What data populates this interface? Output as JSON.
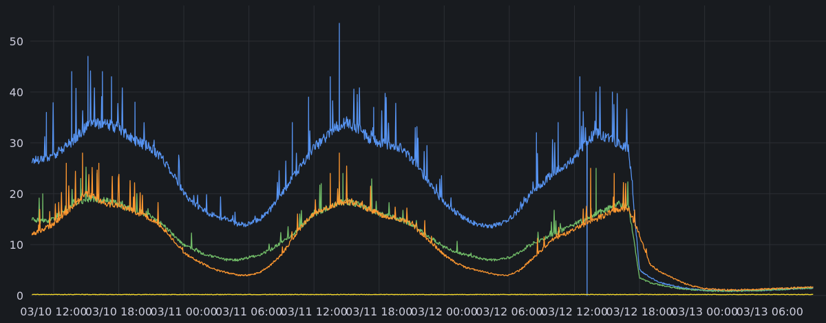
{
  "chart_data": {
    "type": "line",
    "x_ticks": [
      "03/10 12:00",
      "03/10 18:00",
      "03/11 00:00",
      "03/11 06:00",
      "03/11 12:00",
      "03/11 18:00",
      "03/12 00:00",
      "03/12 06:00",
      "03/12 12:00",
      "03/12 18:00",
      "03/13 00:00",
      "03/13 06:00"
    ],
    "y_ticks": [
      0,
      10,
      20,
      30,
      40,
      50
    ],
    "ylim": [
      0,
      57
    ],
    "grid": true,
    "series": [
      {
        "color": "#5794f2",
        "x": [
          "03/10 10:00",
          "03/10 11:00",
          "03/10 12:00",
          "03/10 13:00",
          "03/10 14:00",
          "03/10 15:00",
          "03/10 16:00",
          "03/10 17:00",
          "03/10 18:00",
          "03/10 19:00",
          "03/10 20:00",
          "03/10 21:00",
          "03/10 22:00",
          "03/10 23:00",
          "03/11 00:00",
          "03/11 01:00",
          "03/11 02:00",
          "03/11 03:00",
          "03/11 04:00",
          "03/11 05:00",
          "03/11 06:00",
          "03/11 07:00",
          "03/11 08:00",
          "03/11 09:00",
          "03/11 10:00",
          "03/11 11:00",
          "03/11 12:00",
          "03/11 13:00",
          "03/11 14:00",
          "03/11 15:00",
          "03/11 16:00",
          "03/11 17:00",
          "03/11 18:00",
          "03/11 19:00",
          "03/11 20:00",
          "03/11 21:00",
          "03/11 22:00",
          "03/11 23:00",
          "03/12 00:00",
          "03/12 01:00",
          "03/12 02:00",
          "03/12 03:00",
          "03/12 04:00",
          "03/12 05:00",
          "03/12 06:00",
          "03/12 07:00",
          "03/12 08:00",
          "03/12 09:00",
          "03/12 10:00",
          "03/12 11:00",
          "03/12 12:00",
          "03/12 13:00",
          "03/12 14:00",
          "03/12 15:00",
          "03/12 16:00",
          "03/12 17:00",
          "03/12 18:00",
          "03/12 19:00",
          "03/12 20:00",
          "03/12 21:00",
          "03/12 22:00",
          "03/12 23:00",
          "03/13 00:00",
          "03/13 01:00",
          "03/13 02:00",
          "03/13 03:00",
          "03/13 04:00",
          "03/13 05:00",
          "03/13 06:00",
          "03/13 07:00",
          "03/13 08:00",
          "03/13 09:00",
          "03/13 10:00"
        ],
        "values": [
          26.5,
          27,
          27.5,
          29,
          31,
          33,
          34,
          33.5,
          33,
          31,
          30,
          29,
          27,
          24,
          20,
          18,
          16.5,
          15.5,
          15,
          14,
          14,
          15,
          17,
          20,
          23,
          26,
          29,
          31,
          33,
          34,
          33,
          31,
          30,
          29.5,
          29,
          27,
          24,
          21,
          18,
          16.5,
          15,
          14,
          13.5,
          14,
          15,
          17,
          20,
          22,
          24,
          25,
          27,
          30,
          32,
          31,
          30,
          29,
          5,
          3.5,
          2.5,
          2,
          1.5,
          1.2,
          1,
          1,
          0.9,
          1,
          1,
          1,
          1.1,
          1.2,
          1.3,
          1.4,
          1.5
        ],
        "spikes": [
          [
            "03/10 11:20",
            36
          ],
          [
            "03/10 13:40",
            44
          ],
          [
            "03/10 15:10",
            47
          ],
          [
            "03/10 16:30",
            44
          ],
          [
            "03/10 17:20",
            43
          ],
          [
            "03/10 19:30",
            38
          ],
          [
            "03/11 10:00",
            34
          ],
          [
            "03/11 11:30",
            39
          ],
          [
            "03/11 13:30",
            43
          ],
          [
            "03/11 14:20",
            53.5
          ],
          [
            "03/11 16:00",
            38
          ],
          [
            "03/11 17:30",
            37
          ],
          [
            "03/12 08:30",
            32
          ],
          [
            "03/12 10:30",
            34
          ],
          [
            "03/12 12:30",
            43
          ],
          [
            "03/12 14:00",
            40
          ],
          [
            "03/12 15:30",
            40
          ],
          [
            "03/12 13:10",
            0
          ]
        ]
      },
      {
        "color": "#73bf69",
        "x": [
          "03/10 10:00",
          "03/10 11:00",
          "03/10 12:00",
          "03/10 13:00",
          "03/10 14:00",
          "03/10 15:00",
          "03/10 16:00",
          "03/10 17:00",
          "03/10 18:00",
          "03/10 19:00",
          "03/10 20:00",
          "03/10 21:00",
          "03/10 22:00",
          "03/10 23:00",
          "03/11 00:00",
          "03/11 01:00",
          "03/11 02:00",
          "03/11 03:00",
          "03/11 04:00",
          "03/11 05:00",
          "03/11 06:00",
          "03/11 07:00",
          "03/11 08:00",
          "03/11 09:00",
          "03/11 10:00",
          "03/11 11:00",
          "03/11 12:00",
          "03/11 13:00",
          "03/11 14:00",
          "03/11 15:00",
          "03/11 16:00",
          "03/11 17:00",
          "03/11 18:00",
          "03/11 19:00",
          "03/11 20:00",
          "03/11 21:00",
          "03/11 22:00",
          "03/11 23:00",
          "03/12 00:00",
          "03/12 01:00",
          "03/12 02:00",
          "03/12 03:00",
          "03/12 04:00",
          "03/12 05:00",
          "03/12 06:00",
          "03/12 07:00",
          "03/12 08:00",
          "03/12 09:00",
          "03/12 10:00",
          "03/12 11:00",
          "03/12 12:00",
          "03/12 13:00",
          "03/12 14:00",
          "03/12 15:00",
          "03/12 16:00",
          "03/12 17:00",
          "03/12 18:00",
          "03/12 19:00",
          "03/12 20:00",
          "03/12 21:00",
          "03/12 22:00",
          "03/12 23:00",
          "03/13 00:00",
          "03/13 01:00",
          "03/13 02:00",
          "03/13 03:00",
          "03/13 04:00",
          "03/13 05:00",
          "03/13 06:00",
          "03/13 07:00",
          "03/13 08:00",
          "03/13 09:00",
          "03/13 10:00"
        ],
        "values": [
          15,
          14.5,
          15,
          17,
          18,
          19,
          19,
          18.5,
          18,
          17,
          16.5,
          15.5,
          14,
          12,
          10,
          9,
          8,
          7.5,
          7,
          7,
          7.5,
          8,
          9,
          10.5,
          12,
          14,
          16,
          17,
          18,
          18.5,
          18,
          17,
          16,
          15.5,
          15,
          14,
          12.5,
          11,
          9.5,
          8.5,
          8,
          7.5,
          7,
          7,
          7.5,
          8.5,
          10,
          11,
          12,
          13,
          14,
          15,
          16,
          17,
          18,
          17.5,
          3.5,
          2.5,
          2,
          1.6,
          1.3,
          1.1,
          1,
          0.9,
          0.9,
          0.9,
          1,
          1,
          1.1,
          1.2,
          1.3,
          1.4,
          1.5
        ],
        "spikes": [
          [
            "03/10 11:00",
            20
          ],
          [
            "03/10 14:30",
            23
          ],
          [
            "03/10 16:00",
            24
          ],
          [
            "03/11 12:40",
            22
          ],
          [
            "03/11 14:40",
            24
          ],
          [
            "03/12 14:00",
            25
          ]
        ]
      },
      {
        "color": "#ff9830",
        "x": [
          "03/10 10:00",
          "03/10 11:00",
          "03/10 12:00",
          "03/10 13:00",
          "03/10 14:00",
          "03/10 15:00",
          "03/10 16:00",
          "03/10 17:00",
          "03/10 18:00",
          "03/10 19:00",
          "03/10 20:00",
          "03/10 21:00",
          "03/10 22:00",
          "03/10 23:00",
          "03/11 00:00",
          "03/11 01:00",
          "03/11 02:00",
          "03/11 03:00",
          "03/11 04:00",
          "03/11 05:00",
          "03/11 06:00",
          "03/11 07:00",
          "03/11 08:00",
          "03/11 09:00",
          "03/11 10:00",
          "03/11 11:00",
          "03/11 12:00",
          "03/11 13:00",
          "03/11 14:00",
          "03/11 15:00",
          "03/11 16:00",
          "03/11 17:00",
          "03/11 18:00",
          "03/11 19:00",
          "03/11 20:00",
          "03/11 21:00",
          "03/11 22:00",
          "03/11 23:00",
          "03/12 00:00",
          "03/12 01:00",
          "03/12 02:00",
          "03/12 03:00",
          "03/12 04:00",
          "03/12 05:00",
          "03/12 06:00",
          "03/12 07:00",
          "03/12 08:00",
          "03/12 09:00",
          "03/12 10:00",
          "03/12 11:00",
          "03/12 12:00",
          "03/12 13:00",
          "03/12 14:00",
          "03/12 15:00",
          "03/12 16:00",
          "03/12 17:00",
          "03/12 18:00",
          "03/12 19:00",
          "03/12 20:00",
          "03/12 21:00",
          "03/12 22:00",
          "03/12 23:00",
          "03/13 00:00",
          "03/13 01:00",
          "03/13 02:00",
          "03/13 03:00",
          "03/13 04:00",
          "03/13 05:00",
          "03/13 06:00",
          "03/13 07:00",
          "03/13 08:00",
          "03/13 09:00",
          "03/13 10:00"
        ],
        "values": [
          12,
          13,
          14,
          16,
          18,
          20,
          19,
          18,
          17.5,
          17,
          16,
          15,
          13.5,
          11,
          8.5,
          7,
          6,
          5,
          4.5,
          4,
          4,
          4.5,
          6,
          8,
          11,
          14,
          16,
          17,
          18,
          18.5,
          18,
          17,
          16,
          15.5,
          15,
          14,
          12,
          10,
          8,
          6.5,
          5.5,
          5,
          4.5,
          4,
          4,
          5,
          7,
          9,
          11,
          12,
          13,
          14,
          15,
          16,
          17,
          17,
          12,
          6,
          4.5,
          3.5,
          2.5,
          1.8,
          1.4,
          1.2,
          1.1,
          1.1,
          1.2,
          1.2,
          1.3,
          1.4,
          1.5,
          1.6,
          1.7
        ],
        "spikes": [
          [
            "03/10 13:10",
            26
          ],
          [
            "03/10 14:40",
            28
          ],
          [
            "03/10 16:10",
            26
          ],
          [
            "03/11 14:20",
            28
          ],
          [
            "03/11 13:30",
            24
          ],
          [
            "03/12 13:30",
            25
          ],
          [
            "03/12 15:40",
            24
          ]
        ]
      },
      {
        "color": "#fade2a",
        "x": [
          "03/10 10:00",
          "03/13 10:00"
        ],
        "values": [
          0.2,
          0.2
        ],
        "spikes": []
      }
    ]
  }
}
